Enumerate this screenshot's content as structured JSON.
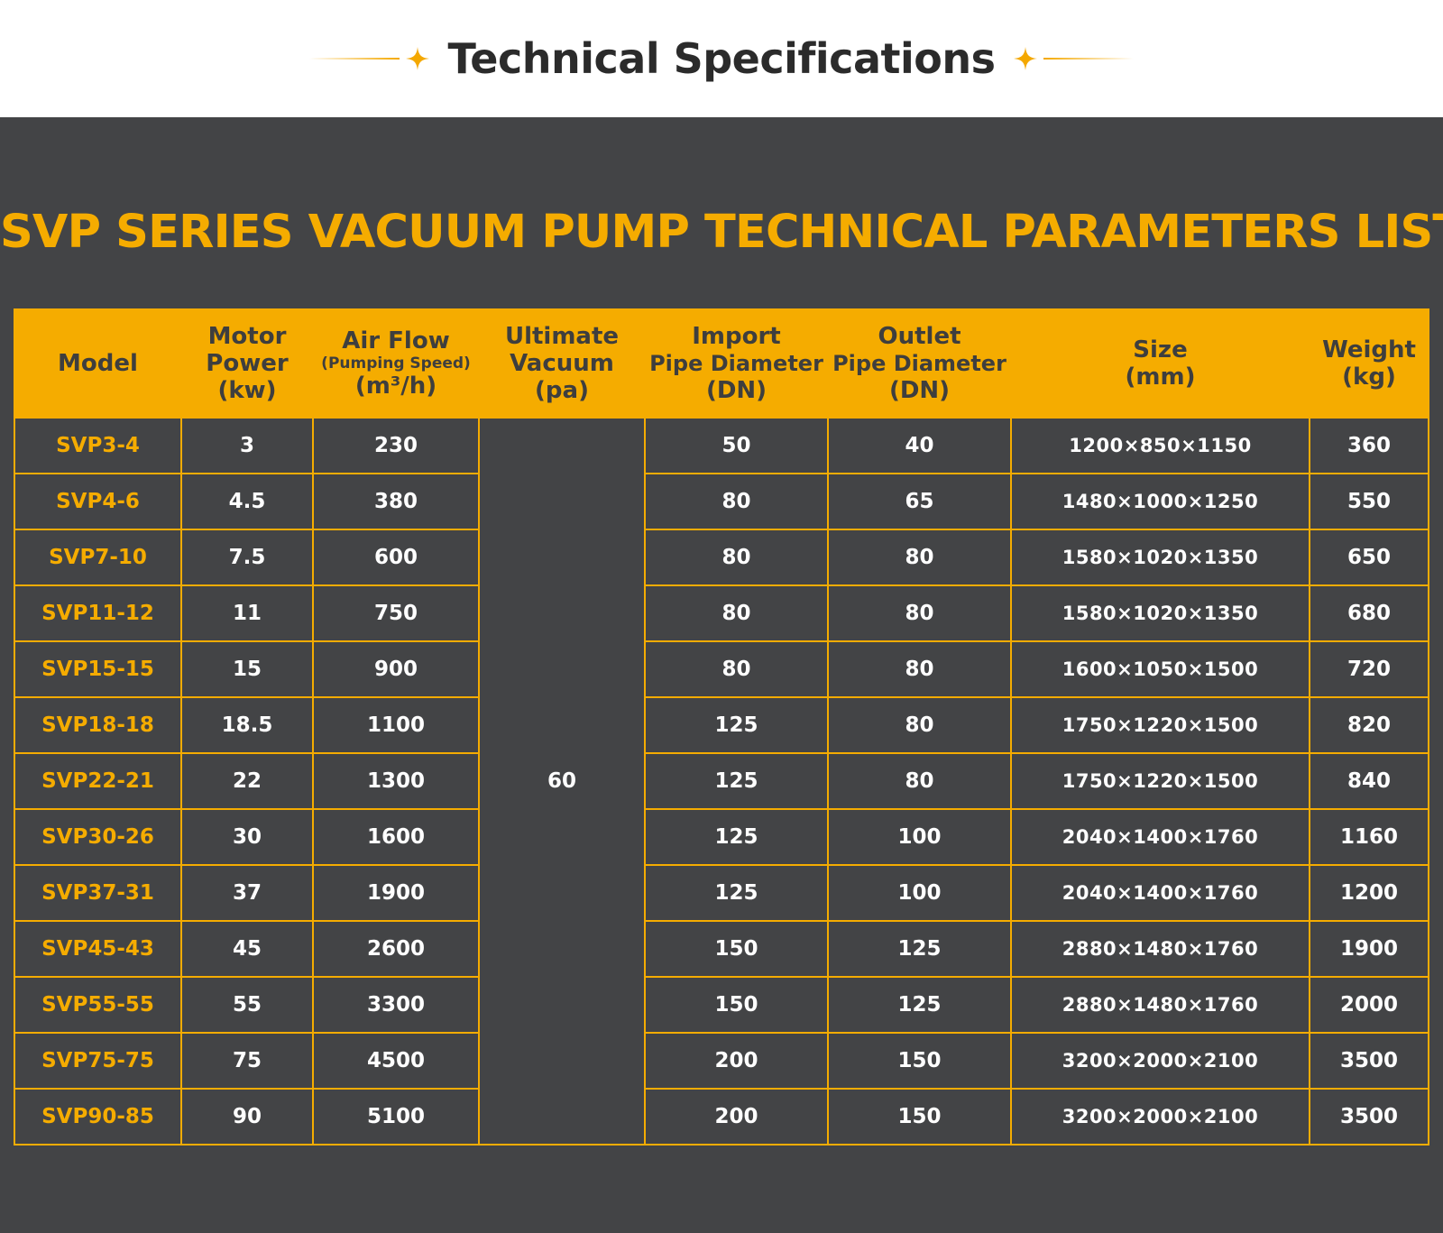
{
  "header": {
    "title": "Technical Specifications",
    "accent_color": "#f4a800",
    "left_icon": "sparkle-icon",
    "right_icon": "sparkle-icon"
  },
  "panel": {
    "title": "SVP SERIES VACUUM PUMP TECHNICAL PARAMETERS LIST",
    "background": "#434446",
    "accent_color": "#f5ac00"
  },
  "table": {
    "headers": {
      "model": [
        "Model"
      ],
      "motor_power": [
        "Motor",
        "Power",
        "(kw)"
      ],
      "air_flow": [
        "Air Flow",
        "(Pumping Speed)",
        "(m³/h)"
      ],
      "ultimate_vacuum": [
        "Ultimate",
        "Vacuum",
        "(pa)"
      ],
      "import_pipe": [
        "Import",
        "Pipe Diameter",
        "(DN)"
      ],
      "outlet_pipe": [
        "Outlet",
        "Pipe Diameter",
        "(DN)"
      ],
      "size": [
        "Size",
        "(mm)"
      ],
      "weight": [
        "Weight",
        "(kg)"
      ]
    },
    "ultimate_vacuum_value": "60",
    "rows": [
      {
        "model": "SVP3-4",
        "power": "3",
        "flow": "230",
        "import": "50",
        "outlet": "40",
        "size": "1200×850×1150",
        "weight": "360"
      },
      {
        "model": "SVP4-6",
        "power": "4.5",
        "flow": "380",
        "import": "80",
        "outlet": "65",
        "size": "1480×1000×1250",
        "weight": "550"
      },
      {
        "model": "SVP7-10",
        "power": "7.5",
        "flow": "600",
        "import": "80",
        "outlet": "80",
        "size": "1580×1020×1350",
        "weight": "650"
      },
      {
        "model": "SVP11-12",
        "power": "11",
        "flow": "750",
        "import": "80",
        "outlet": "80",
        "size": "1580×1020×1350",
        "weight": "680"
      },
      {
        "model": "SVP15-15",
        "power": "15",
        "flow": "900",
        "import": "80",
        "outlet": "80",
        "size": "1600×1050×1500",
        "weight": "720"
      },
      {
        "model": "SVP18-18",
        "power": "18.5",
        "flow": "1100",
        "import": "125",
        "outlet": "80",
        "size": "1750×1220×1500",
        "weight": "820"
      },
      {
        "model": "SVP22-21",
        "power": "22",
        "flow": "1300",
        "import": "125",
        "outlet": "80",
        "size": "1750×1220×1500",
        "weight": "840"
      },
      {
        "model": "SVP30-26",
        "power": "30",
        "flow": "1600",
        "import": "125",
        "outlet": "100",
        "size": "2040×1400×1760",
        "weight": "1160"
      },
      {
        "model": "SVP37-31",
        "power": "37",
        "flow": "1900",
        "import": "125",
        "outlet": "100",
        "size": "2040×1400×1760",
        "weight": "1200"
      },
      {
        "model": "SVP45-43",
        "power": "45",
        "flow": "2600",
        "import": "150",
        "outlet": "125",
        "size": "2880×1480×1760",
        "weight": "1900"
      },
      {
        "model": "SVP55-55",
        "power": "55",
        "flow": "3300",
        "import": "150",
        "outlet": "125",
        "size": "2880×1480×1760",
        "weight": "2000"
      },
      {
        "model": "SVP75-75",
        "power": "75",
        "flow": "4500",
        "import": "200",
        "outlet": "150",
        "size": "3200×2000×2100",
        "weight": "3500"
      },
      {
        "model": "SVP90-85",
        "power": "90",
        "flow": "5100",
        "import": "200",
        "outlet": "150",
        "size": "3200×2000×2100",
        "weight": "3500"
      }
    ]
  }
}
